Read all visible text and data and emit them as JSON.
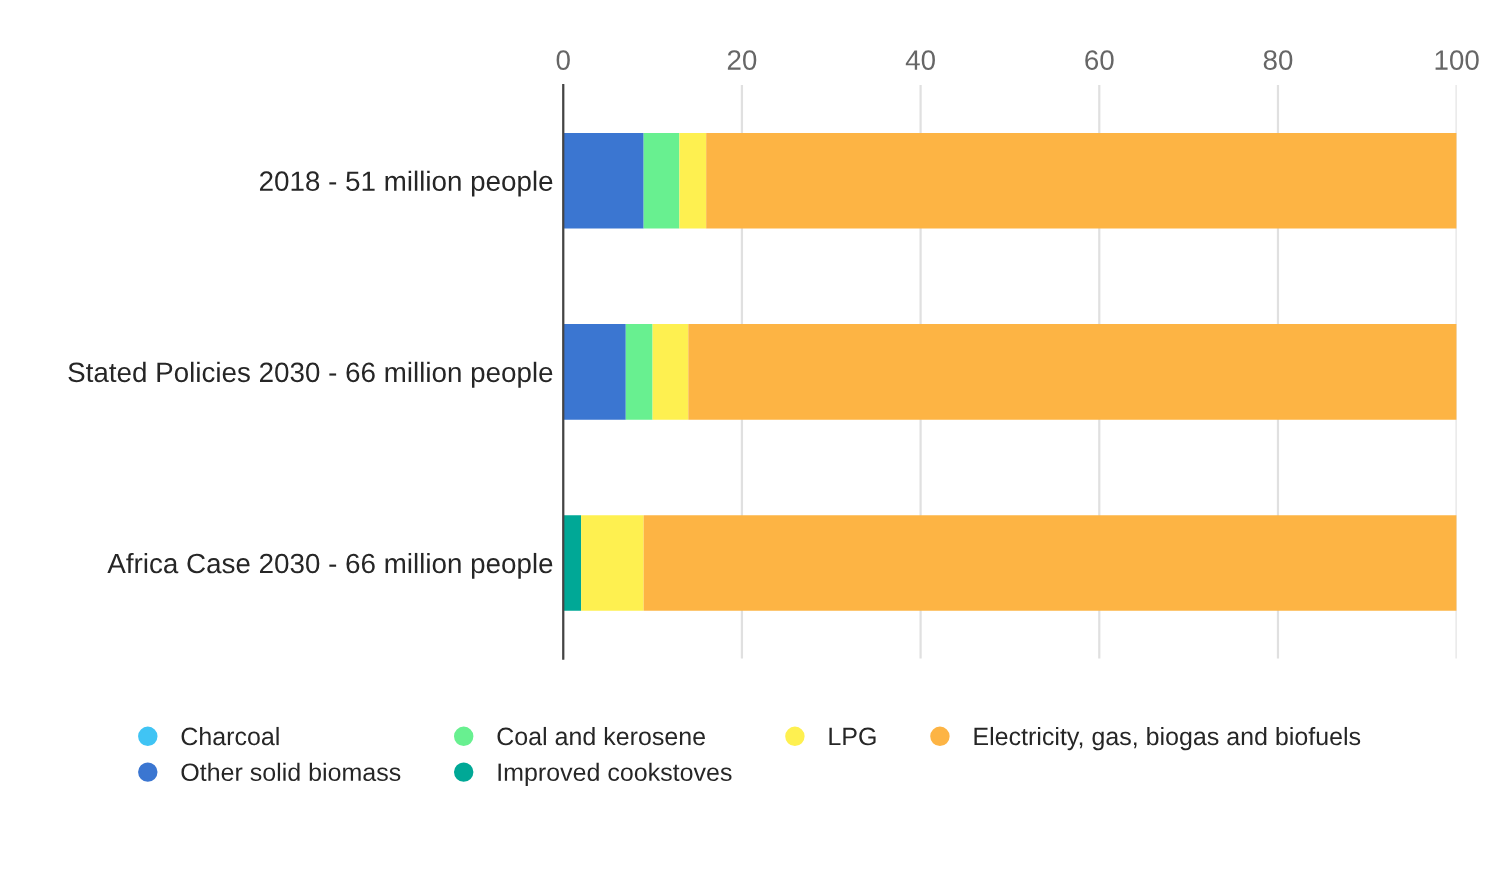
{
  "chart_data": {
    "type": "bar",
    "orientation": "horizontal",
    "stacked": true,
    "categories": [
      "2018 - 51 million people",
      "Stated Policies 2030 - 66 million people",
      "Africa Case 2030 - 66 million people"
    ],
    "series": [
      {
        "name": "Charcoal",
        "color": "#40c4f4",
        "values": [
          0,
          0,
          0
        ]
      },
      {
        "name": "Other solid biomass",
        "color": "#3b76d1",
        "values": [
          9,
          7,
          0
        ]
      },
      {
        "name": "Coal and kerosene",
        "color": "#68f090",
        "values": [
          4,
          3,
          0
        ]
      },
      {
        "name": "Improved cookstoves",
        "color": "#00a896",
        "values": [
          0,
          0,
          2
        ]
      },
      {
        "name": "LPG",
        "color": "#fef050",
        "values": [
          3,
          4,
          7
        ]
      },
      {
        "name": "Electricity, gas, biogas and biofuels",
        "color": "#fdb444",
        "values": [
          84,
          86,
          91
        ]
      }
    ],
    "xlim": [
      0,
      100
    ],
    "xticks": [
      0,
      20,
      40,
      60,
      80,
      100
    ],
    "grid": "x",
    "legend": "bottom"
  }
}
